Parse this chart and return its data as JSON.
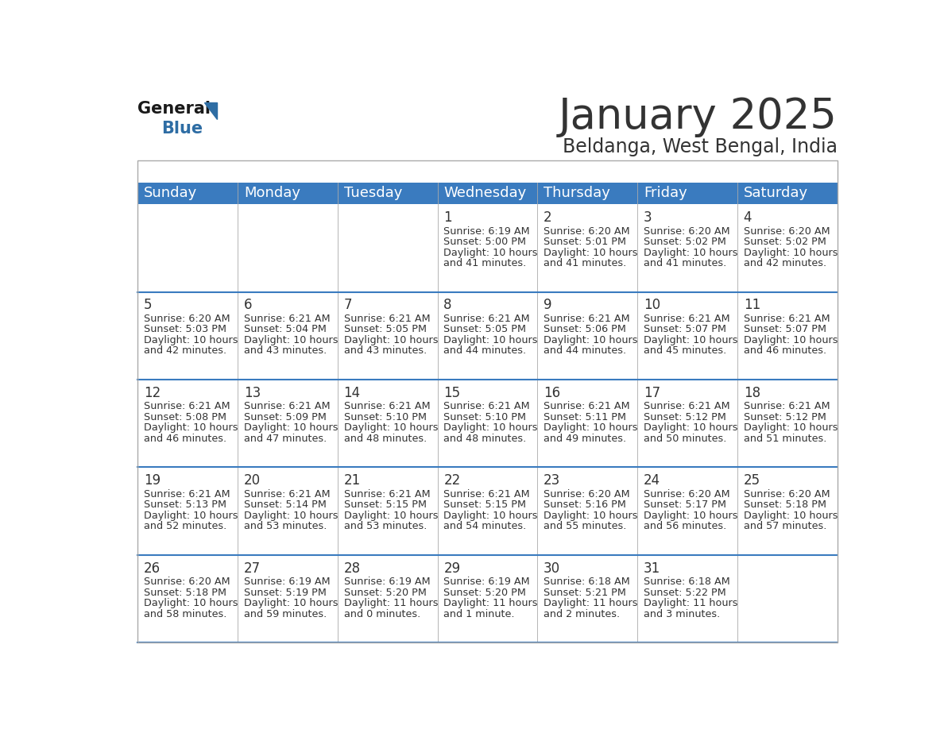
{
  "title": "January 2025",
  "subtitle": "Beldanga, West Bengal, India",
  "header_color": "#3a7bbf",
  "header_text_color": "#ffffff",
  "bg_color": "#ffffff",
  "cell_bg": "#ffffff",
  "day_headers": [
    "Sunday",
    "Monday",
    "Tuesday",
    "Wednesday",
    "Thursday",
    "Friday",
    "Saturday"
  ],
  "title_fontsize": 38,
  "subtitle_fontsize": 17,
  "header_fontsize": 13,
  "cell_day_fontsize": 12,
  "cell_text_fontsize": 9.2,
  "days": [
    {
      "day": 1,
      "col": 3,
      "row": 0,
      "sunrise": "6:19 AM",
      "sunset": "5:00 PM",
      "daylight_line1": "Daylight: 10 hours",
      "daylight_line2": "and 41 minutes."
    },
    {
      "day": 2,
      "col": 4,
      "row": 0,
      "sunrise": "6:20 AM",
      "sunset": "5:01 PM",
      "daylight_line1": "Daylight: 10 hours",
      "daylight_line2": "and 41 minutes."
    },
    {
      "day": 3,
      "col": 5,
      "row": 0,
      "sunrise": "6:20 AM",
      "sunset": "5:02 PM",
      "daylight_line1": "Daylight: 10 hours",
      "daylight_line2": "and 41 minutes."
    },
    {
      "day": 4,
      "col": 6,
      "row": 0,
      "sunrise": "6:20 AM",
      "sunset": "5:02 PM",
      "daylight_line1": "Daylight: 10 hours",
      "daylight_line2": "and 42 minutes."
    },
    {
      "day": 5,
      "col": 0,
      "row": 1,
      "sunrise": "6:20 AM",
      "sunset": "5:03 PM",
      "daylight_line1": "Daylight: 10 hours",
      "daylight_line2": "and 42 minutes."
    },
    {
      "day": 6,
      "col": 1,
      "row": 1,
      "sunrise": "6:21 AM",
      "sunset": "5:04 PM",
      "daylight_line1": "Daylight: 10 hours",
      "daylight_line2": "and 43 minutes."
    },
    {
      "day": 7,
      "col": 2,
      "row": 1,
      "sunrise": "6:21 AM",
      "sunset": "5:05 PM",
      "daylight_line1": "Daylight: 10 hours",
      "daylight_line2": "and 43 minutes."
    },
    {
      "day": 8,
      "col": 3,
      "row": 1,
      "sunrise": "6:21 AM",
      "sunset": "5:05 PM",
      "daylight_line1": "Daylight: 10 hours",
      "daylight_line2": "and 44 minutes."
    },
    {
      "day": 9,
      "col": 4,
      "row": 1,
      "sunrise": "6:21 AM",
      "sunset": "5:06 PM",
      "daylight_line1": "Daylight: 10 hours",
      "daylight_line2": "and 44 minutes."
    },
    {
      "day": 10,
      "col": 5,
      "row": 1,
      "sunrise": "6:21 AM",
      "sunset": "5:07 PM",
      "daylight_line1": "Daylight: 10 hours",
      "daylight_line2": "and 45 minutes."
    },
    {
      "day": 11,
      "col": 6,
      "row": 1,
      "sunrise": "6:21 AM",
      "sunset": "5:07 PM",
      "daylight_line1": "Daylight: 10 hours",
      "daylight_line2": "and 46 minutes."
    },
    {
      "day": 12,
      "col": 0,
      "row": 2,
      "sunrise": "6:21 AM",
      "sunset": "5:08 PM",
      "daylight_line1": "Daylight: 10 hours",
      "daylight_line2": "and 46 minutes."
    },
    {
      "day": 13,
      "col": 1,
      "row": 2,
      "sunrise": "6:21 AM",
      "sunset": "5:09 PM",
      "daylight_line1": "Daylight: 10 hours",
      "daylight_line2": "and 47 minutes."
    },
    {
      "day": 14,
      "col": 2,
      "row": 2,
      "sunrise": "6:21 AM",
      "sunset": "5:10 PM",
      "daylight_line1": "Daylight: 10 hours",
      "daylight_line2": "and 48 minutes."
    },
    {
      "day": 15,
      "col": 3,
      "row": 2,
      "sunrise": "6:21 AM",
      "sunset": "5:10 PM",
      "daylight_line1": "Daylight: 10 hours",
      "daylight_line2": "and 48 minutes."
    },
    {
      "day": 16,
      "col": 4,
      "row": 2,
      "sunrise": "6:21 AM",
      "sunset": "5:11 PM",
      "daylight_line1": "Daylight: 10 hours",
      "daylight_line2": "and 49 minutes."
    },
    {
      "day": 17,
      "col": 5,
      "row": 2,
      "sunrise": "6:21 AM",
      "sunset": "5:12 PM",
      "daylight_line1": "Daylight: 10 hours",
      "daylight_line2": "and 50 minutes."
    },
    {
      "day": 18,
      "col": 6,
      "row": 2,
      "sunrise": "6:21 AM",
      "sunset": "5:12 PM",
      "daylight_line1": "Daylight: 10 hours",
      "daylight_line2": "and 51 minutes."
    },
    {
      "day": 19,
      "col": 0,
      "row": 3,
      "sunrise": "6:21 AM",
      "sunset": "5:13 PM",
      "daylight_line1": "Daylight: 10 hours",
      "daylight_line2": "and 52 minutes."
    },
    {
      "day": 20,
      "col": 1,
      "row": 3,
      "sunrise": "6:21 AM",
      "sunset": "5:14 PM",
      "daylight_line1": "Daylight: 10 hours",
      "daylight_line2": "and 53 minutes."
    },
    {
      "day": 21,
      "col": 2,
      "row": 3,
      "sunrise": "6:21 AM",
      "sunset": "5:15 PM",
      "daylight_line1": "Daylight: 10 hours",
      "daylight_line2": "and 53 minutes."
    },
    {
      "day": 22,
      "col": 3,
      "row": 3,
      "sunrise": "6:21 AM",
      "sunset": "5:15 PM",
      "daylight_line1": "Daylight: 10 hours",
      "daylight_line2": "and 54 minutes."
    },
    {
      "day": 23,
      "col": 4,
      "row": 3,
      "sunrise": "6:20 AM",
      "sunset": "5:16 PM",
      "daylight_line1": "Daylight: 10 hours",
      "daylight_line2": "and 55 minutes."
    },
    {
      "day": 24,
      "col": 5,
      "row": 3,
      "sunrise": "6:20 AM",
      "sunset": "5:17 PM",
      "daylight_line1": "Daylight: 10 hours",
      "daylight_line2": "and 56 minutes."
    },
    {
      "day": 25,
      "col": 6,
      "row": 3,
      "sunrise": "6:20 AM",
      "sunset": "5:18 PM",
      "daylight_line1": "Daylight: 10 hours",
      "daylight_line2": "and 57 minutes."
    },
    {
      "day": 26,
      "col": 0,
      "row": 4,
      "sunrise": "6:20 AM",
      "sunset": "5:18 PM",
      "daylight_line1": "Daylight: 10 hours",
      "daylight_line2": "and 58 minutes."
    },
    {
      "day": 27,
      "col": 1,
      "row": 4,
      "sunrise": "6:19 AM",
      "sunset": "5:19 PM",
      "daylight_line1": "Daylight: 10 hours",
      "daylight_line2": "and 59 minutes."
    },
    {
      "day": 28,
      "col": 2,
      "row": 4,
      "sunrise": "6:19 AM",
      "sunset": "5:20 PM",
      "daylight_line1": "Daylight: 11 hours",
      "daylight_line2": "and 0 minutes."
    },
    {
      "day": 29,
      "col": 3,
      "row": 4,
      "sunrise": "6:19 AM",
      "sunset": "5:20 PM",
      "daylight_line1": "Daylight: 11 hours",
      "daylight_line2": "and 1 minute."
    },
    {
      "day": 30,
      "col": 4,
      "row": 4,
      "sunrise": "6:18 AM",
      "sunset": "5:21 PM",
      "daylight_line1": "Daylight: 11 hours",
      "daylight_line2": "and 2 minutes."
    },
    {
      "day": 31,
      "col": 5,
      "row": 4,
      "sunrise": "6:18 AM",
      "sunset": "5:22 PM",
      "daylight_line1": "Daylight: 11 hours",
      "daylight_line2": "and 3 minutes."
    }
  ],
  "num_rows": 5,
  "num_cols": 7,
  "logo_general_color": "#1a1a1a",
  "logo_triangle_color": "#2e6da4",
  "logo_blue_color": "#2e6da4",
  "text_color_dark": "#333333",
  "border_color": "#aaaaaa",
  "row_sep_color": "#3a7bbf"
}
